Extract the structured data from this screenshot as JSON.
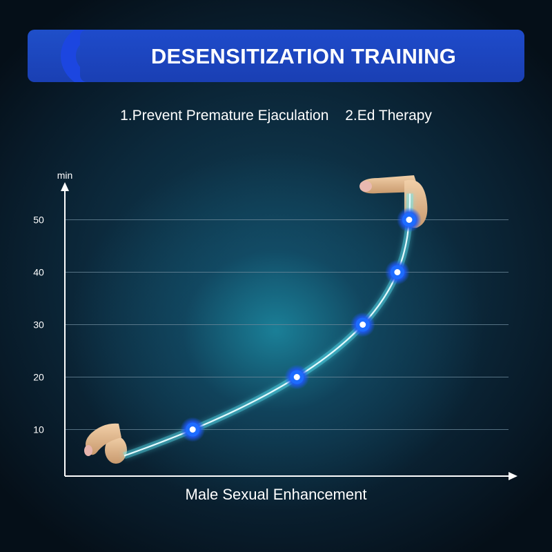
{
  "header": {
    "title": "DESENSITIZATION TRAINING",
    "subtitle_items": [
      "1.Prevent Premature Ejaculation",
      "2.Ed Therapy"
    ]
  },
  "colors": {
    "banner": "#1a3fb3",
    "curve": "#e6fbff",
    "marker_glow": "#1d6cff",
    "grid": "#6a8799"
  },
  "chart_data": {
    "type": "line",
    "xlabel": "Male Sexual Enhancement",
    "ylabel": "min",
    "ylim": [
      0,
      55
    ],
    "yticks": [
      10,
      20,
      30,
      40,
      50
    ],
    "grid": true,
    "points": [
      10,
      20,
      30,
      40,
      50
    ],
    "curve_start": 5,
    "curve_end": 55,
    "decorations": [
      "flaccid-figure",
      "erect-figure"
    ]
  }
}
